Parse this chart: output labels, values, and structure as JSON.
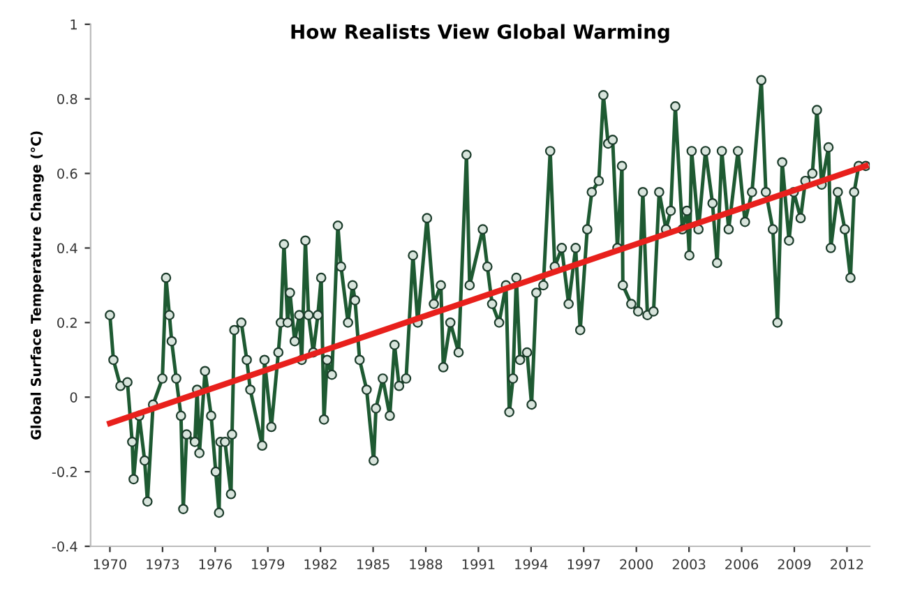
{
  "chart_data": {
    "type": "line",
    "title": "How Realists View Global Warming",
    "ylabel": "Global Surface Temperature Change (°C)",
    "xlim": [
      1968.9,
      2013.3
    ],
    "xticks": [
      1970,
      1973,
      1976,
      1979,
      1982,
      1985,
      1988,
      1991,
      1994,
      1997,
      2000,
      2003,
      2006,
      2009,
      2012
    ],
    "ylim": [
      -0.4,
      1
    ],
    "yticks": [
      {
        "value": -0.4,
        "label": "-0.4"
      },
      {
        "value": -0.2,
        "label": "-0.2"
      },
      0,
      0.2,
      0.4,
      0.6,
      0.8,
      1
    ],
    "grid": false,
    "legend": false,
    "series": [
      {
        "marker": "circle",
        "color": "#1e5a32",
        "x": [
          1970.0,
          1970.2,
          1970.6,
          1971.0,
          1971.27,
          1971.35,
          1971.67,
          1971.98,
          1972.14,
          1972.46,
          1972.99,
          1973.2,
          1973.39,
          1973.52,
          1973.78,
          1974.05,
          1974.18,
          1974.37,
          1974.84,
          1974.97,
          1975.1,
          1975.42,
          1975.77,
          1976.03,
          1976.22,
          1976.3,
          1976.56,
          1976.9,
          1976.96,
          1977.09,
          1977.49,
          1977.8,
          1978.0,
          1978.68,
          1978.81,
          1979.2,
          1979.6,
          1979.74,
          1979.92,
          1980.13,
          1980.26,
          1980.53,
          1980.79,
          1980.93,
          1981.14,
          1981.32,
          1981.59,
          1981.85,
          1982.04,
          1982.2,
          1982.38,
          1982.65,
          1982.99,
          1983.17,
          1983.57,
          1983.83,
          1983.97,
          1984.23,
          1984.63,
          1985.03,
          1985.16,
          1985.55,
          1985.95,
          1986.22,
          1986.48,
          1986.88,
          1987.27,
          1987.54,
          1988.07,
          1988.46,
          1988.86,
          1989.0,
          1989.4,
          1989.87,
          1990.32,
          1990.5,
          1991.25,
          1991.51,
          1991.78,
          1992.18,
          1992.57,
          1992.76,
          1992.97,
          1993.16,
          1993.37,
          1993.77,
          1994.03,
          1994.3,
          1994.7,
          1995.09,
          1995.35,
          1995.75,
          1996.14,
          1996.54,
          1996.8,
          1997.2,
          1997.46,
          1997.86,
          1998.12,
          1998.39,
          1998.65,
          1998.92,
          1999.18,
          1999.23,
          1999.71,
          2000.1,
          2000.37,
          2000.63,
          2000.98,
          2001.3,
          2001.69,
          2001.96,
          2002.22,
          2002.62,
          2002.88,
          2003.02,
          2003.15,
          2003.54,
          2003.94,
          2004.34,
          2004.6,
          2004.87,
          2005.26,
          2005.79,
          2006.19,
          2006.59,
          2007.12,
          2007.38,
          2007.78,
          2008.04,
          2008.31,
          2008.7,
          2008.97,
          2009.36,
          2009.63,
          2010.03,
          2010.29,
          2010.56,
          2010.95,
          2011.08,
          2011.48,
          2011.88,
          2012.2,
          2012.41,
          2012.67,
          2013.07
        ],
        "values": [
          0.22,
          0.1,
          0.03,
          0.04,
          -0.12,
          -0.22,
          -0.05,
          -0.17,
          -0.28,
          -0.02,
          0.05,
          0.32,
          0.22,
          0.15,
          0.05,
          -0.05,
          -0.3,
          -0.1,
          -0.12,
          0.02,
          -0.15,
          0.07,
          -0.05,
          -0.2,
          -0.31,
          -0.12,
          -0.12,
          -0.26,
          -0.1,
          0.18,
          0.2,
          0.1,
          0.02,
          -0.13,
          0.1,
          -0.08,
          0.12,
          0.2,
          0.41,
          0.2,
          0.28,
          0.15,
          0.22,
          0.1,
          0.42,
          0.22,
          0.12,
          0.22,
          0.32,
          -0.06,
          0.1,
          0.06,
          0.46,
          0.35,
          0.2,
          0.3,
          0.26,
          0.1,
          0.02,
          -0.17,
          -0.03,
          0.05,
          -0.05,
          0.14,
          0.03,
          0.05,
          0.38,
          0.2,
          0.48,
          0.25,
          0.3,
          0.08,
          0.2,
          0.12,
          0.65,
          0.3,
          0.45,
          0.35,
          0.25,
          0.2,
          0.3,
          -0.04,
          0.05,
          0.32,
          0.1,
          0.12,
          -0.02,
          0.28,
          0.3,
          0.66,
          0.35,
          0.4,
          0.25,
          0.4,
          0.18,
          0.45,
          0.55,
          0.58,
          0.81,
          0.68,
          0.69,
          0.4,
          0.62,
          0.3,
          0.25,
          0.23,
          0.55,
          0.22,
          0.23,
          0.55,
          0.45,
          0.5,
          0.78,
          0.45,
          0.5,
          0.38,
          0.66,
          0.45,
          0.66,
          0.52,
          0.36,
          0.66,
          0.45,
          0.66,
          0.47,
          0.55,
          0.85,
          0.55,
          0.45,
          0.2,
          0.63,
          0.42,
          0.55,
          0.48,
          0.58,
          0.6,
          0.77,
          0.57,
          0.67,
          0.4,
          0.55,
          0.45,
          0.32,
          0.55,
          0.62,
          0.62
        ]
      },
      {
        "marker": "none",
        "color": "#e8201c",
        "x": [
          1970.0,
          2013.07
        ],
        "values": [
          -0.07,
          0.62
        ]
      }
    ]
  }
}
